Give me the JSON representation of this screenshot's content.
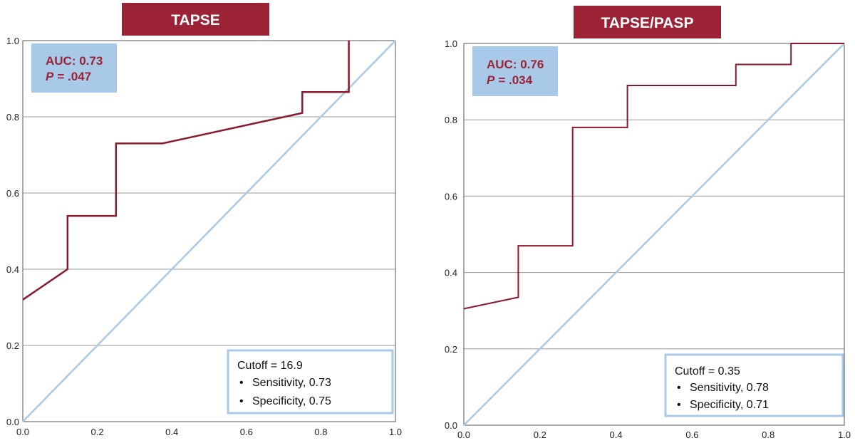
{
  "chart_data": [
    {
      "type": "line",
      "title": "TAPSE",
      "xlim": [
        0,
        1
      ],
      "ylim": [
        0,
        1
      ],
      "xticks": [
        "0.0",
        "0.2",
        "0.4",
        "0.6",
        "0.8",
        "1.0"
      ],
      "yticks": [
        "0.0",
        "0.2",
        "0.4",
        "0.6",
        "0.8",
        "1.0"
      ],
      "series": [
        {
          "name": "ROC curve",
          "x": [
            0,
            0.12,
            0.12,
            0.25,
            0.25,
            0.375,
            0.75,
            0.75,
            0.875,
            0.875
          ],
          "y": [
            0.32,
            0.4,
            0.54,
            0.54,
            0.73,
            0.73,
            0.81,
            0.865,
            0.865,
            1.0
          ]
        },
        {
          "name": "Reference line",
          "x": [
            0,
            1
          ],
          "y": [
            0,
            1
          ]
        }
      ],
      "annotation": {
        "auc": "AUC: 0.73",
        "p_label": "P",
        "p_value": "= .047"
      },
      "cutoff": {
        "label": "Cutoff = 16.9",
        "sensitivity": "Sensitivity, 0.73",
        "specificity": "Specificity, 0.75",
        "bullet": "•"
      },
      "colors": {
        "curve": "#8b1a2e",
        "reference": "#a9c9e8",
        "title_bg": "#9b2335",
        "auc_box": "#a9c9e8",
        "auc_text": "#9b2335"
      }
    },
    {
      "type": "line",
      "title": "TAPSE/PASP",
      "xlim": [
        0,
        1
      ],
      "ylim": [
        0,
        1
      ],
      "xticks": [
        "0.0",
        "0.2",
        "0.4",
        "0.6",
        "0.8",
        "1.0"
      ],
      "yticks": [
        "0.0",
        "0.2",
        "0.4",
        "0.6",
        "0.8",
        "1.0"
      ],
      "series": [
        {
          "name": "ROC curve",
          "x": [
            0,
            0.143,
            0.143,
            0.286,
            0.286,
            0.43,
            0.43,
            0.715,
            0.715,
            0.86,
            0.86,
            1.0
          ],
          "y": [
            0.305,
            0.335,
            0.47,
            0.47,
            0.78,
            0.78,
            0.89,
            0.89,
            0.945,
            0.945,
            1.0,
            1.0
          ]
        },
        {
          "name": "Reference line",
          "x": [
            0,
            1
          ],
          "y": [
            0,
            1
          ]
        }
      ],
      "annotation": {
        "auc": "AUC: 0.76",
        "p_label": "P",
        "p_value": "= .034"
      },
      "cutoff": {
        "label": "Cutoff = 0.35",
        "sensitivity": "Sensitivity, 0.78",
        "specificity": "Specificity, 0.71",
        "bullet": "•"
      },
      "colors": {
        "curve": "#8b1a2e",
        "reference": "#a9c9e8",
        "title_bg": "#9b2335",
        "auc_box": "#a9c9e8",
        "auc_text": "#9b2335"
      }
    }
  ]
}
